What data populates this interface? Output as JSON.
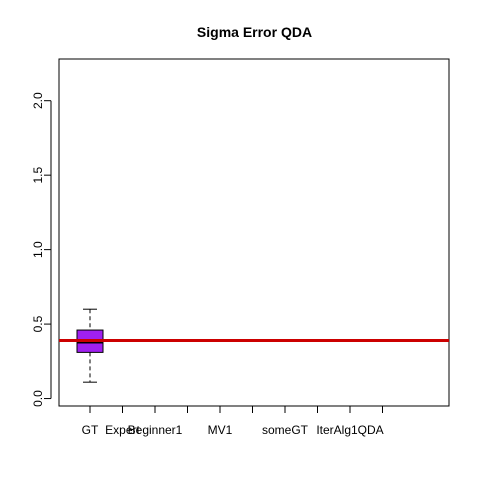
{
  "chart_data": {
    "type": "box",
    "title": "Sigma Error QDA",
    "xlabel": "",
    "ylabel": "",
    "categories": [
      "GT",
      "Expert",
      "Beginner1",
      "",
      "MV1",
      "",
      "someGT",
      "",
      "IterAlg1QDA",
      ""
    ],
    "ylim": [
      -0.05,
      2.28
    ],
    "y_ticks": [
      0.0,
      0.5,
      1.0,
      1.5,
      2.0
    ],
    "y_tick_labels": [
      "0.0",
      "0.5",
      "1.0",
      "1.5",
      "2.0"
    ],
    "boxes": [
      {
        "category": "GT",
        "whisker_low": 0.11,
        "q1": 0.31,
        "median": 0.38,
        "q3": 0.46,
        "whisker_high": 0.6,
        "fill": "#a020f0"
      }
    ],
    "reference_line": {
      "y": 0.39,
      "color": "#cc0000"
    },
    "grid": false,
    "legend": "none"
  }
}
